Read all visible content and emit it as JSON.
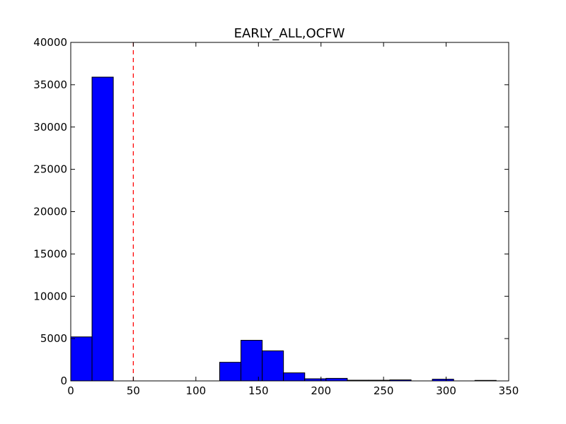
{
  "chart_data": {
    "type": "bar",
    "title": "EARLY_ALL,OCFW",
    "xlabel": "",
    "ylabel": "",
    "xlim": [
      0,
      350
    ],
    "ylim": [
      0,
      40000
    ],
    "xticks": [
      "0",
      "50",
      "100",
      "150",
      "200",
      "250",
      "300",
      "350"
    ],
    "yticks": [
      "0",
      "5000",
      "10000",
      "15000",
      "20000",
      "25000",
      "30000",
      "35000",
      "40000"
    ],
    "bin_edges": [
      0,
      17,
      34,
      51,
      68,
      85,
      102,
      119,
      136,
      153,
      170,
      187,
      204,
      221,
      238,
      255,
      272,
      289,
      306,
      323,
      340
    ],
    "values": [
      5200,
      35900,
      0,
      0,
      0,
      0,
      0,
      2200,
      4800,
      3550,
      950,
      250,
      300,
      80,
      80,
      120,
      0,
      200,
      0,
      60
    ],
    "bar_color": "#0000ff",
    "reference_line": {
      "x": 50,
      "color": "#ff0000",
      "style": "dashed"
    },
    "grid": false
  }
}
